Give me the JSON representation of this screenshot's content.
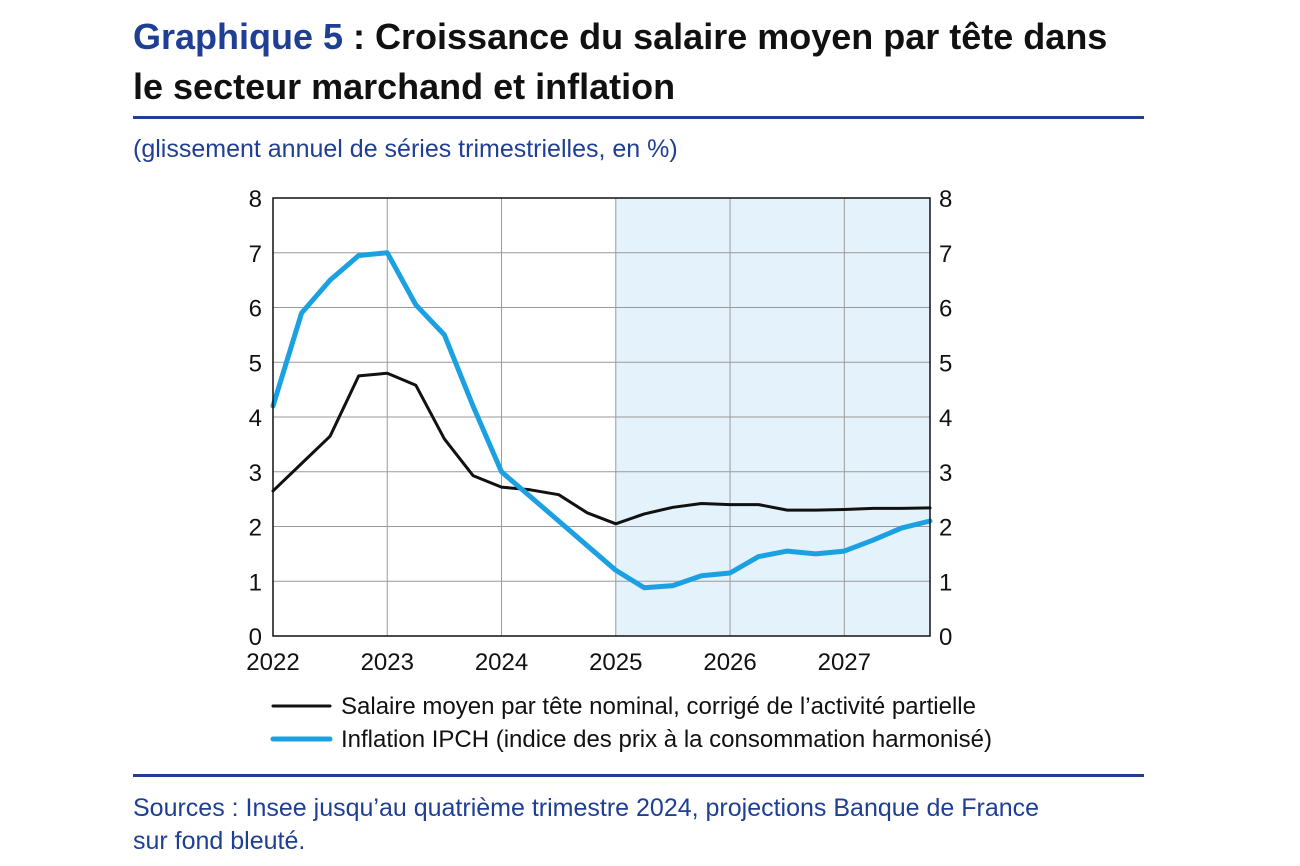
{
  "header": {
    "title_prefix": "Graphique 5",
    "title_rest": " : Croissance du salaire moyen par tête dans le secteur marchand et inflation",
    "subtitle": "(glissement annuel de séries trimestrielles, en %)"
  },
  "footer": {
    "source_line1": "Sources : Insee jusqu’au quatrième trimestre 2024, projections Banque de France",
    "source_line2": "sur fond bleuté."
  },
  "colors": {
    "brand_blue": "#1f3f95",
    "wage_line": "#111111",
    "inflation_line": "#1ba1e2",
    "projection_shade": "#e4f3fb"
  },
  "chart_data": {
    "type": "line",
    "title": "Croissance du salaire moyen par tête dans le secteur marchand et inflation",
    "xlabel": "",
    "ylabel": "",
    "ylim": [
      0,
      8
    ],
    "xlim": [
      2022.0,
      2027.75
    ],
    "x_ticks": [
      2022,
      2023,
      2024,
      2025,
      2026,
      2027
    ],
    "y_ticks": [
      0,
      1,
      2,
      3,
      4,
      5,
      6,
      7,
      8
    ],
    "grid": true,
    "projection_start": 2025.0,
    "x": [
      2022.0,
      2022.25,
      2022.5,
      2022.75,
      2023.0,
      2023.25,
      2023.5,
      2023.75,
      2024.0,
      2024.25,
      2024.5,
      2024.75,
      2025.0,
      2025.25,
      2025.5,
      2025.75,
      2026.0,
      2026.25,
      2026.5,
      2026.75,
      2027.0,
      2027.25,
      2027.5,
      2027.75
    ],
    "series": [
      {
        "name": "Salaire moyen par tête nominal, corrigé de l’activité partielle",
        "color": "#111111",
        "values": [
          2.65,
          3.15,
          3.65,
          4.75,
          4.8,
          4.58,
          3.6,
          2.93,
          2.72,
          2.67,
          2.58,
          2.25,
          2.05,
          2.23,
          2.35,
          2.42,
          2.4,
          2.4,
          2.3,
          2.3,
          2.31,
          2.33,
          2.33,
          2.34
        ]
      },
      {
        "name": "Inflation IPCH (indice des prix à la consommation harmonisé)",
        "color": "#1ba1e2",
        "values": [
          4.2,
          5.9,
          6.5,
          6.95,
          7.0,
          6.05,
          5.5,
          4.2,
          3.0,
          2.55,
          2.1,
          1.65,
          1.2,
          0.88,
          0.92,
          1.1,
          1.15,
          1.45,
          1.55,
          1.5,
          1.55,
          1.75,
          1.97,
          2.1
        ]
      }
    ]
  }
}
